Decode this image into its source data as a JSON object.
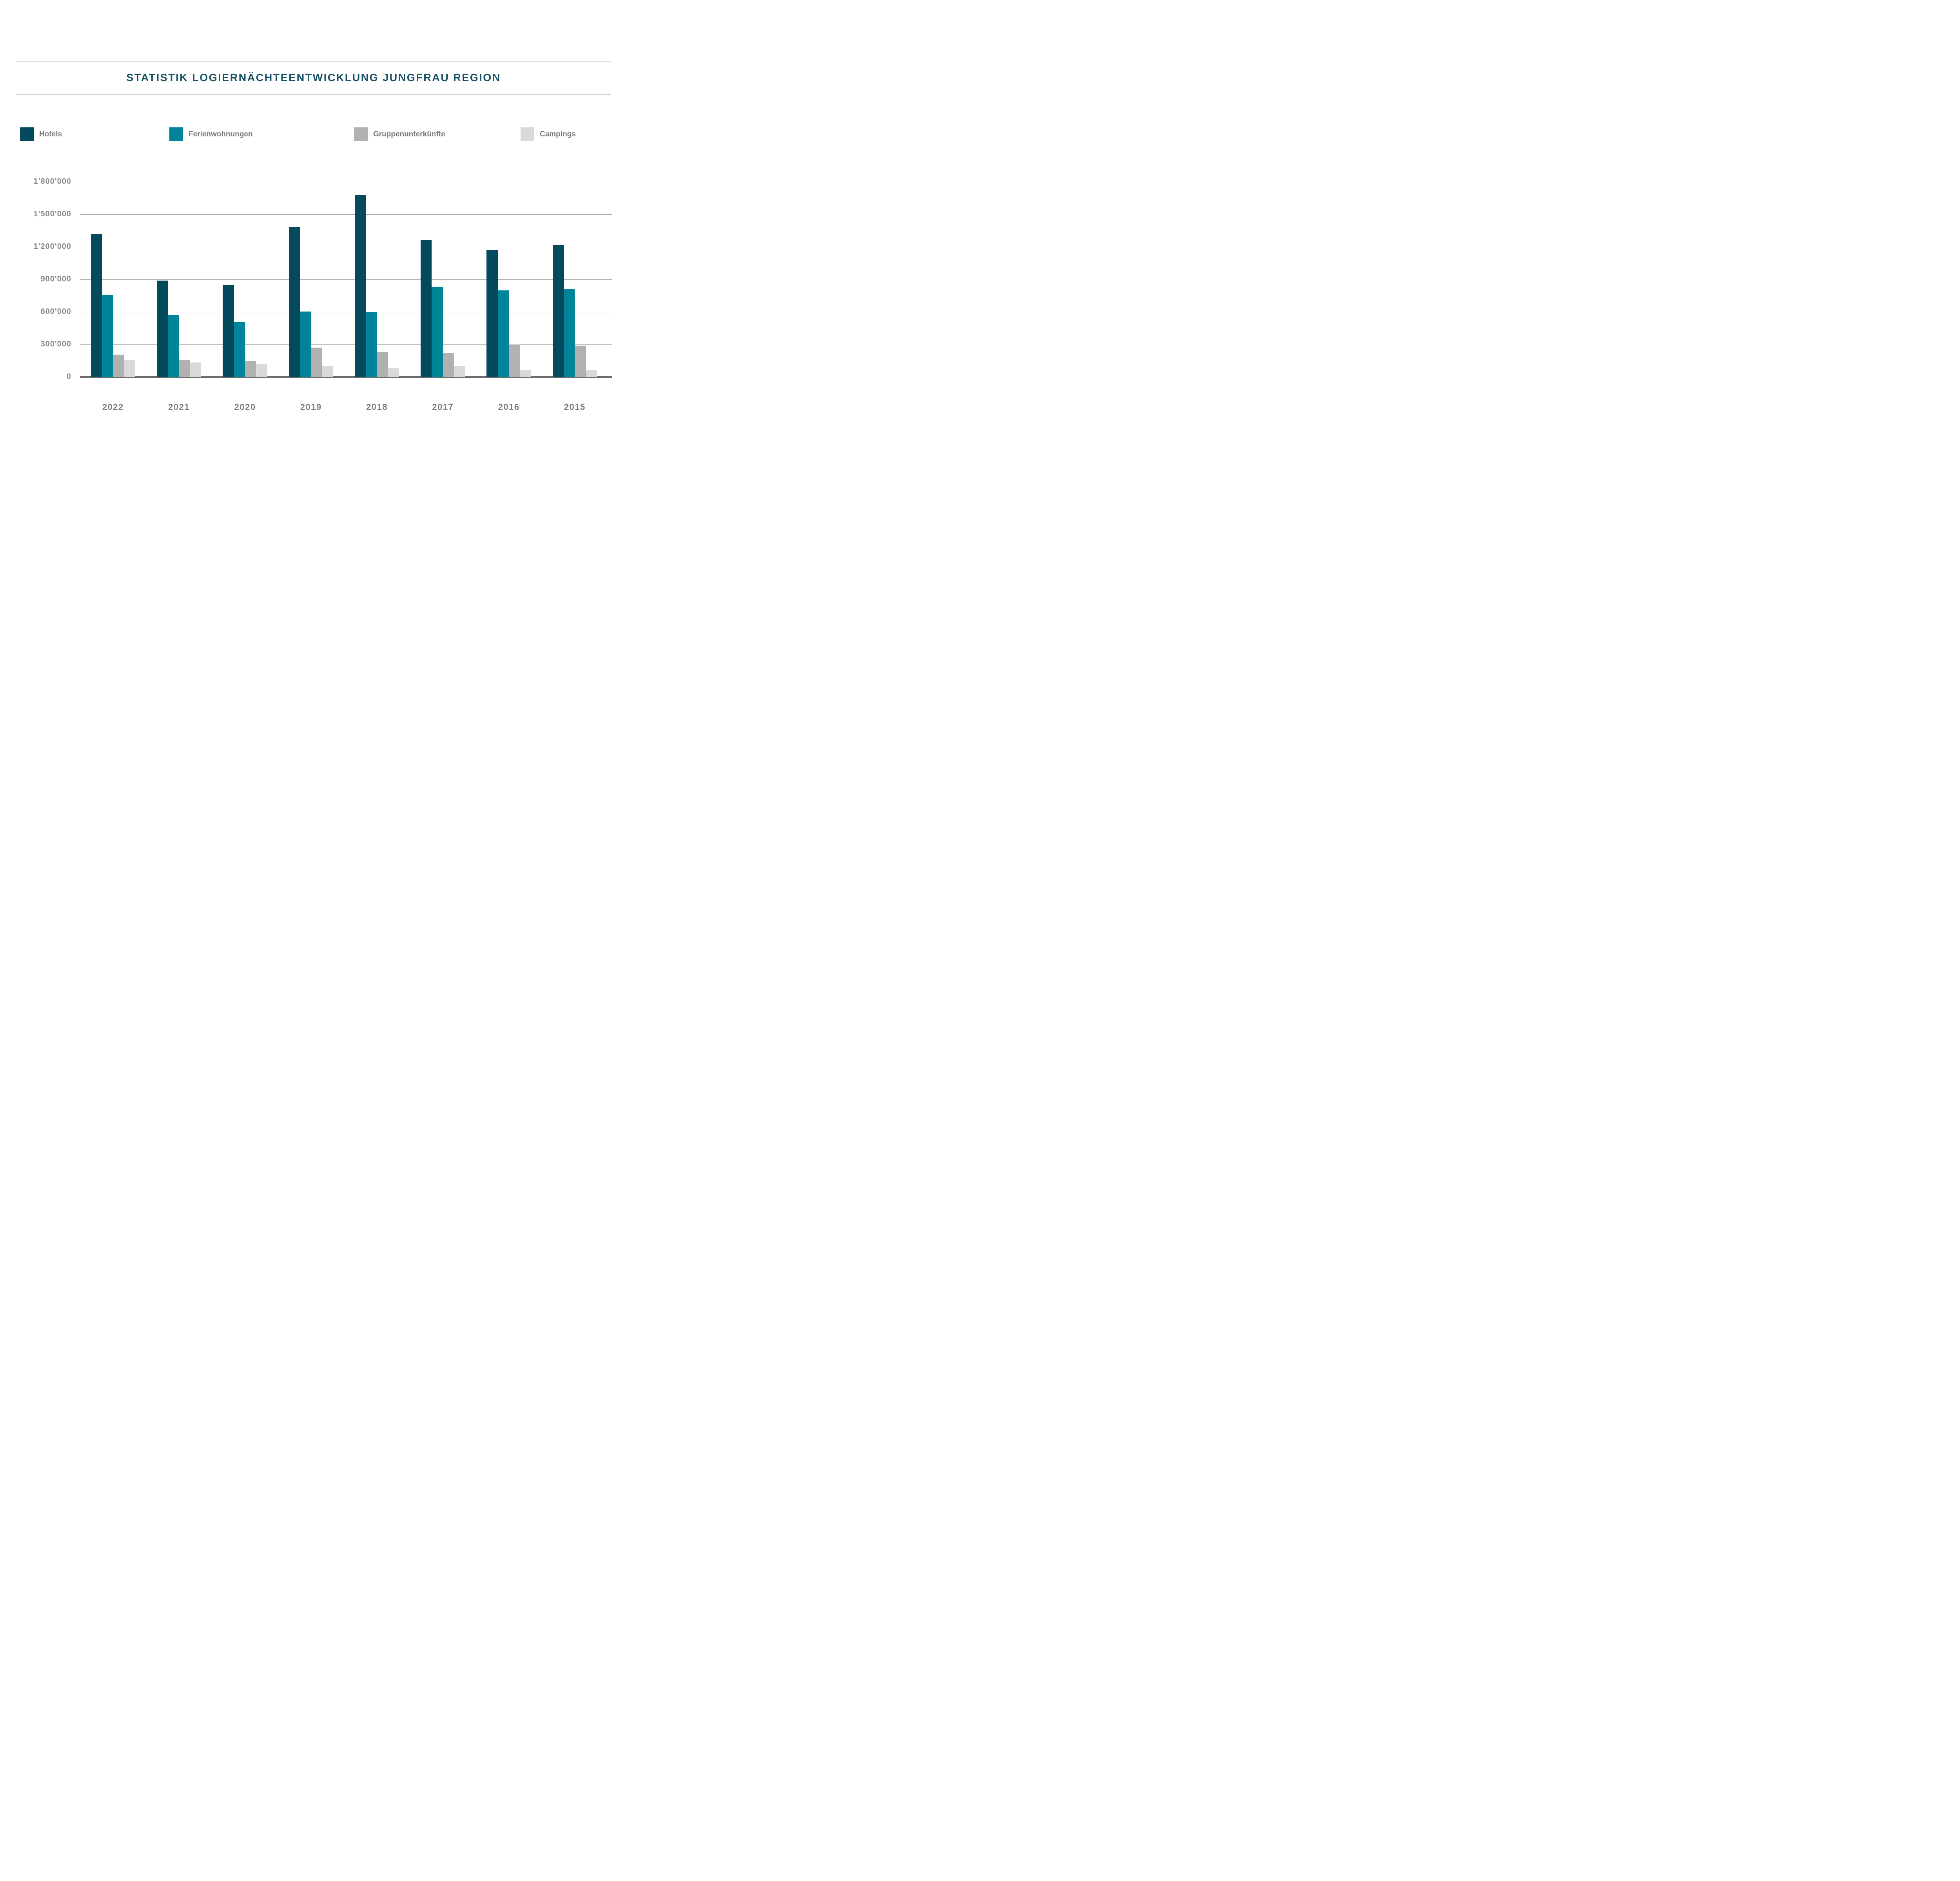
{
  "title": "STATISTIK LOGIERNÄCHTEENTWICKLUNG JUNGFRAU REGION",
  "colors": {
    "title": "#175265",
    "hotels": "#054a5c",
    "ferienwohnungen": "#008499",
    "gruppenunterkuenfte": "#b1b1b1",
    "campings": "#d9d9d9",
    "axis_text": "#8a8a8a",
    "gridline": "#9b9b9b",
    "baseline": "#6d6d6d"
  },
  "chart_data": {
    "type": "bar",
    "title": "STATISTIK LOGIERNÄCHTEENTWICKLUNG JUNGFRAU REGION",
    "categories": [
      "2022",
      "2021",
      "2020",
      "2019",
      "2018",
      "2017",
      "2016",
      "2015"
    ],
    "series": [
      {
        "name": "Hotels",
        "color": "#054a5c",
        "values": [
          1320000,
          890000,
          850000,
          1380000,
          1680000,
          1265000,
          1170000,
          1220000
        ]
      },
      {
        "name": "Ferienwohnungen",
        "color": "#008499",
        "values": [
          755000,
          570000,
          505000,
          605000,
          600000,
          830000,
          800000,
          810000
        ]
      },
      {
        "name": "Gruppenunterkünfte",
        "color": "#b1b1b1",
        "values": [
          205000,
          155000,
          145000,
          270000,
          230000,
          220000,
          300000,
          290000
        ]
      },
      {
        "name": "Campings",
        "color": "#d9d9d9",
        "values": [
          160000,
          135000,
          120000,
          100000,
          80000,
          100000,
          60000,
          60000
        ]
      }
    ],
    "xlabel": "",
    "ylabel": "",
    "ylim": [
      0,
      1800000
    ],
    "ytick_interval": 300000,
    "ytick_labels": [
      "1'800'000",
      "1'500'000",
      "1'200'000",
      "900'000",
      "600'000",
      "300'000",
      "0"
    ],
    "grid": true,
    "legend_position": "top"
  }
}
